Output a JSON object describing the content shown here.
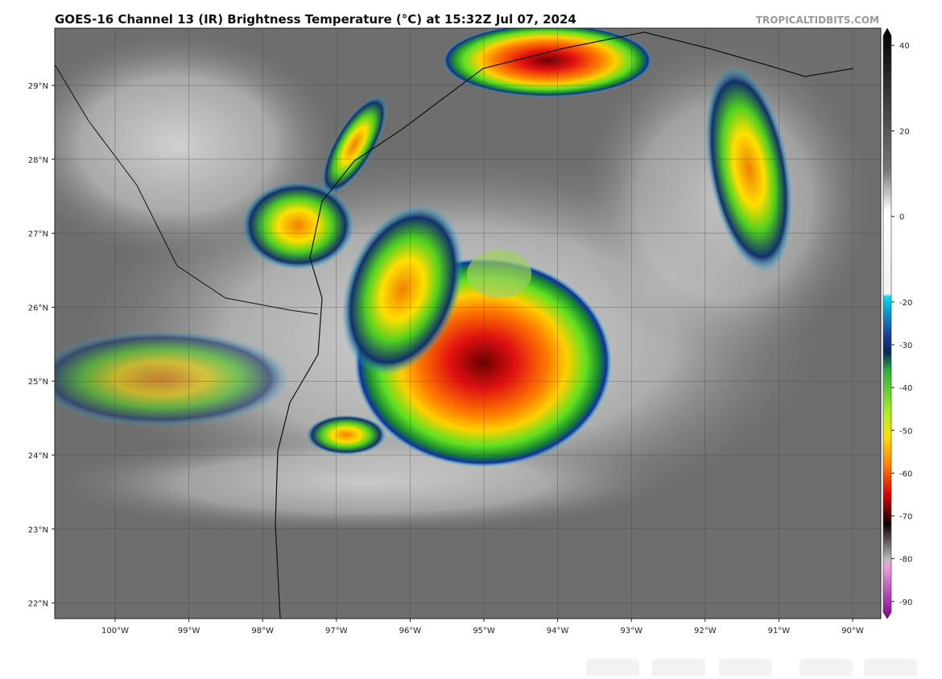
{
  "title": "GOES-16 Channel 13 (IR) Brightness Temperature (°C) at 15:32Z Jul 07, 2024",
  "credit": "TROPICALTIDBITS.COM",
  "latitude_labels": [
    "29°N",
    "28°N",
    "27°N",
    "26°N",
    "25°N",
    "24°N",
    "23°N",
    "22°N"
  ],
  "longitude_labels": [
    "100°W",
    "99°W",
    "98°W",
    "97°W",
    "96°W",
    "95°W",
    "94°W",
    "93°W",
    "92°W",
    "91°W",
    "90°W"
  ],
  "colorbar": {
    "lim": [
      -94,
      44
    ],
    "ticks": [
      40,
      20,
      0,
      -20,
      -30,
      -40,
      -50,
      -60,
      -70,
      -80,
      -90
    ]
  }
}
